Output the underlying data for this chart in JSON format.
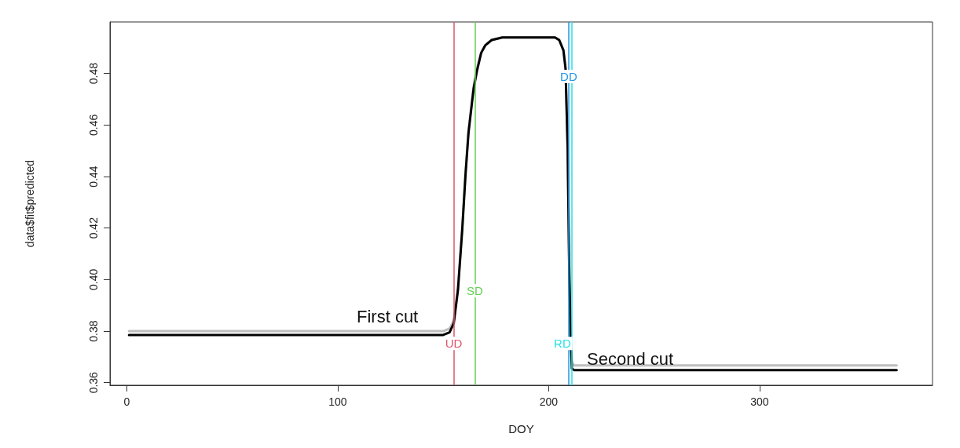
{
  "chart_data": {
    "type": "line",
    "xlabel": "DOY",
    "ylabel": "data$fit$predicted",
    "x": [
      1,
      50,
      100,
      150,
      153,
      155,
      157,
      159,
      160.6,
      162,
      164.4,
      166,
      168,
      170,
      173,
      178,
      185,
      195,
      203,
      205,
      207,
      208,
      209,
      209.8,
      210.5,
      211,
      212,
      250,
      300,
      365
    ],
    "series": [
      {
        "color": "#bebebe",
        "values": [
          0.38,
          0.38,
          0.38,
          0.38,
          0.381,
          0.384,
          0.397,
          0.42,
          0.442,
          0.458,
          0.475,
          0.482,
          0.488,
          0.491,
          0.493,
          0.494,
          0.494,
          0.494,
          0.494,
          0.493,
          0.489,
          0.482,
          0.452,
          0.402,
          0.378,
          0.368,
          0.3667,
          0.3667,
          0.3667,
          0.3667
        ]
      },
      {
        "color": "#000000",
        "values": [
          0.3785,
          0.3785,
          0.3785,
          0.3785,
          0.3795,
          0.383,
          0.396,
          0.419,
          0.441,
          0.457,
          0.474,
          0.481,
          0.488,
          0.491,
          0.493,
          0.494,
          0.494,
          0.494,
          0.494,
          0.493,
          0.489,
          0.482,
          0.451,
          0.401,
          0.377,
          0.3655,
          0.3649,
          0.3649,
          0.3649,
          0.3649
        ]
      }
    ],
    "ref_lines": [
      {
        "axis": "x",
        "value": 155,
        "label": "UD",
        "color": "#df536b"
      },
      {
        "axis": "x",
        "value": 165,
        "label": "SD",
        "color": "#61d04f"
      },
      {
        "axis": "x",
        "value": 209.5,
        "label": "DD",
        "color": "#2297e6"
      },
      {
        "axis": "x",
        "value": 211,
        "label": "RD",
        "color": "#28e2e5"
      }
    ],
    "annotations": [
      "First cut",
      "Second cut"
    ],
    "xlim": [
      -8,
      382
    ],
    "xticks": [
      0,
      100,
      200,
      300
    ],
    "ylim": [
      0.359,
      0.5
    ],
    "yticks": [
      0.36,
      0.38,
      {
        "value": 0.4,
        "label": "0.40"
      },
      0.42,
      0.44,
      0.46,
      0.48
    ],
    "grid": false,
    "marker": "none",
    "line_style": "solid"
  }
}
